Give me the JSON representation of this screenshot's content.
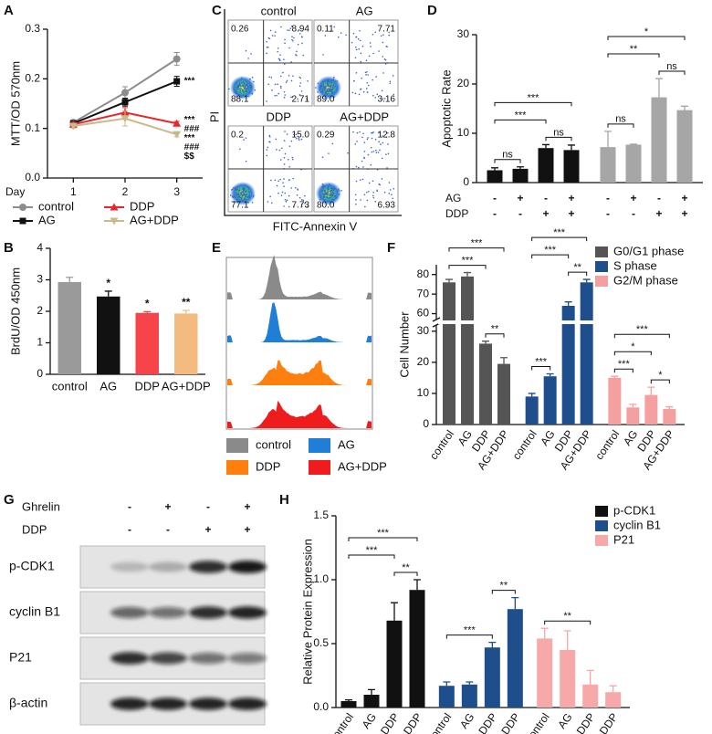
{
  "chart_data": [
    {
      "type": "line",
      "panel": "A",
      "y_label": "MTT/OD 570nm",
      "x_label": "Day",
      "x": [
        1,
        2,
        3
      ],
      "xlim": [
        0.5,
        3.5
      ],
      "xticks": [
        1,
        2,
        3
      ],
      "ylim": [
        0,
        0.3
      ],
      "yticks": [
        {
          "value": 0,
          "label": "0.0"
        },
        0.1,
        0.2,
        0.3
      ],
      "legend": "bottom",
      "series": [
        {
          "name": "control",
          "color": "#8c8c8c",
          "marker": "circle",
          "values": [
            0.112,
            0.172,
            0.24
          ],
          "errors": [
            0.005,
            0.012,
            0.013
          ]
        },
        {
          "name": "AG",
          "color": "#111111",
          "marker": "square",
          "values": [
            0.11,
            0.153,
            0.195
          ],
          "errors": [
            0.005,
            0.008,
            0.01
          ],
          "annotations": [
            "***"
          ]
        },
        {
          "name": "DDP",
          "color": "#e8262a",
          "marker": "triangle",
          "values": [
            0.108,
            0.132,
            0.11
          ],
          "errors": [
            0.005,
            0.01,
            0.004
          ],
          "annotations": [
            "***",
            "###"
          ]
        },
        {
          "name": "AG+DDP",
          "color": "#c9b98c",
          "marker": "diamond",
          "values": [
            0.105,
            0.12,
            0.088
          ],
          "errors": [
            0.005,
            0.015,
            0.005
          ],
          "annotations": [
            "***",
            "###",
            "$$"
          ]
        }
      ]
    },
    {
      "type": "bar",
      "panel": "B",
      "y_label": "BrdU/OD 450nm",
      "categories": [
        "control",
        "AG",
        "DDP",
        "AG+DDP"
      ],
      "values": [
        2.93,
        2.47,
        1.95,
        1.93
      ],
      "errors": [
        0.15,
        0.17,
        0.04,
        0.1
      ],
      "colors": [
        "#9a9a9a",
        "#111111",
        "#f7434a",
        "#f3bb7f"
      ],
      "annotations": [
        null,
        "*",
        "*",
        "**"
      ],
      "ylim": [
        0,
        4
      ],
      "yticks": [
        0,
        1,
        2,
        3,
        4
      ]
    },
    {
      "type": "bar",
      "panel": "D",
      "y_label": "Apoptotic Rate",
      "ylim": [
        0,
        30
      ],
      "yticks": [
        0,
        10,
        20,
        30
      ],
      "series": [
        {
          "color": "#111111",
          "values": [
            2.5,
            2.8,
            7.0,
            6.6
          ],
          "errors": [
            0.5,
            0.4,
            0.7,
            1.0
          ],
          "brackets": [
            {
              "label": "ns",
              "from": 0,
              "to": 1
            },
            {
              "label": "ns",
              "from": 2,
              "to": 3
            },
            {
              "label": "***",
              "from": 0,
              "to": 2
            },
            {
              "label": "***",
              "from": 0,
              "to": 3
            }
          ]
        },
        {
          "color": "#a6a6a6",
          "values": [
            7.2,
            7.7,
            17.3,
            14.7
          ],
          "errors": [
            3.2,
            0.1,
            3.8,
            0.8
          ],
          "brackets": [
            {
              "label": "ns",
              "from": 0,
              "to": 1
            },
            {
              "label": "ns",
              "from": 2,
              "to": 3
            },
            {
              "label": "**",
              "from": 0,
              "to": 2
            },
            {
              "label": "*",
              "from": 0,
              "to": 3
            }
          ]
        }
      ],
      "conditions": [
        {
          "label": "AG",
          "signs": [
            "-",
            "+",
            "-",
            "+",
            "-",
            "+",
            "-",
            "+"
          ]
        },
        {
          "label": "DDP",
          "signs": [
            "-",
            "-",
            "+",
            "+",
            "-",
            "-",
            "+",
            "+"
          ]
        }
      ]
    },
    {
      "type": "bar",
      "panel": "F",
      "y_label": "Cell Number",
      "categories": [
        "control",
        "AG",
        "DDP",
        "AG+DDP"
      ],
      "ylim": [
        0,
        85
      ],
      "ybreak": [
        32,
        57
      ],
      "yticks": [
        0,
        10,
        20,
        30,
        60,
        70,
        80
      ],
      "legend": "top-right",
      "series": [
        {
          "name": "G0/G1 phase",
          "color": "#555555",
          "values": [
            76,
            79,
            26,
            19.5
          ],
          "errors": [
            1.5,
            2,
            0.8,
            2
          ],
          "brackets": [
            {
              "label": "**",
              "from": 2,
              "to": 3
            },
            {
              "label": "***",
              "from": 0,
              "to": 2
            },
            {
              "label": "***",
              "from": 0,
              "to": 3
            }
          ]
        },
        {
          "name": "S phase",
          "color": "#1f4e8c",
          "values": [
            9,
            15.5,
            64,
            76
          ],
          "errors": [
            1,
            0.8,
            2,
            1.5
          ],
          "brackets": [
            {
              "label": "***",
              "from": 0,
              "to": 1
            },
            {
              "label": "**",
              "from": 2,
              "to": 3
            },
            {
              "label": "***",
              "from": 0,
              "to": 2
            },
            {
              "label": "***",
              "from": 0,
              "to": 3
            }
          ]
        },
        {
          "name": "G2/M phase",
          "color": "#f4a0a0",
          "values": [
            15,
            5.5,
            9.5,
            5
          ],
          "errors": [
            0.5,
            1,
            2.5,
            0.7
          ],
          "brackets": [
            {
              "label": "***",
              "from": 0,
              "to": 1
            },
            {
              "label": "*",
              "from": 2,
              "to": 3
            },
            {
              "label": "*",
              "from": 0,
              "to": 2
            },
            {
              "label": "***",
              "from": 0,
              "to": 3
            }
          ]
        }
      ]
    },
    {
      "type": "bar",
      "panel": "H",
      "y_label": "Relative Protein Expression",
      "categories": [
        "control",
        "AG",
        "DDP",
        "AG+DDP"
      ],
      "ylim": [
        0,
        1.5
      ],
      "yticks": [
        {
          "value": 0,
          "label": "0.0"
        },
        0.5,
        {
          "value": 1,
          "label": "1.0"
        },
        1.5
      ],
      "legend": "top-right",
      "series": [
        {
          "name": "p-CDK1",
          "color": "#111111",
          "values": [
            0.05,
            0.1,
            0.68,
            0.92
          ],
          "errors": [
            0.01,
            0.04,
            0.14,
            0.08
          ],
          "brackets": [
            {
              "label": "**",
              "from": 2,
              "to": 3
            },
            {
              "label": "***",
              "from": 0,
              "to": 2
            },
            {
              "label": "***",
              "from": 0,
              "to": 3
            }
          ]
        },
        {
          "name": "cyclin B1",
          "color": "#1f4e8c",
          "values": [
            0.17,
            0.18,
            0.47,
            0.77
          ],
          "errors": [
            0.03,
            0.02,
            0.04,
            0.09
          ],
          "brackets": [
            {
              "label": "***",
              "from": 0,
              "to": 2
            },
            {
              "label": "**",
              "from": 2,
              "to": 3
            }
          ]
        },
        {
          "name": "P21",
          "color": "#f7a8a8",
          "values": [
            0.54,
            0.45,
            0.18,
            0.12
          ],
          "errors": [
            0.08,
            0.15,
            0.11,
            0.05
          ],
          "brackets": [
            {
              "label": "**",
              "from": 0,
              "to": 2
            }
          ]
        }
      ]
    }
  ],
  "flow": {
    "panel": "C",
    "y_label": "PI",
    "x_label": "FITC-Annexin V",
    "plots": [
      {
        "title": "control",
        "quadrants": [
          "0.26",
          "8.94",
          "88.1",
          "2.71"
        ]
      },
      {
        "title": "AG",
        "quadrants": [
          "0.11",
          "7.71",
          "89.0",
          "3.16"
        ]
      },
      {
        "title": "DDP",
        "quadrants": [
          "0.2",
          "15.0",
          "77.1",
          "7.73"
        ]
      },
      {
        "title": "AG+DDP",
        "quadrants": [
          "0.29",
          "12.8",
          "80.0",
          "6.93"
        ]
      }
    ]
  },
  "histogram": {
    "panel": "E",
    "legend": [
      {
        "label": "control",
        "color": "#8a8a8a"
      },
      {
        "label": "AG",
        "color": "#1f7fd6"
      },
      {
        "label": "DDP",
        "color": "#ff7f0e"
      },
      {
        "label": "AG+DDP",
        "color": "#ee1c1c"
      }
    ]
  },
  "blot": {
    "panel": "G",
    "treatments": [
      {
        "label": "Ghrelin",
        "signs": [
          "-",
          "+",
          "-",
          "+"
        ]
      },
      {
        "label": "DDP",
        "signs": [
          "-",
          "-",
          "+",
          "+"
        ]
      }
    ],
    "bands": [
      "p-CDK1",
      "cyclin B1",
      "P21",
      "β-actin"
    ]
  }
}
